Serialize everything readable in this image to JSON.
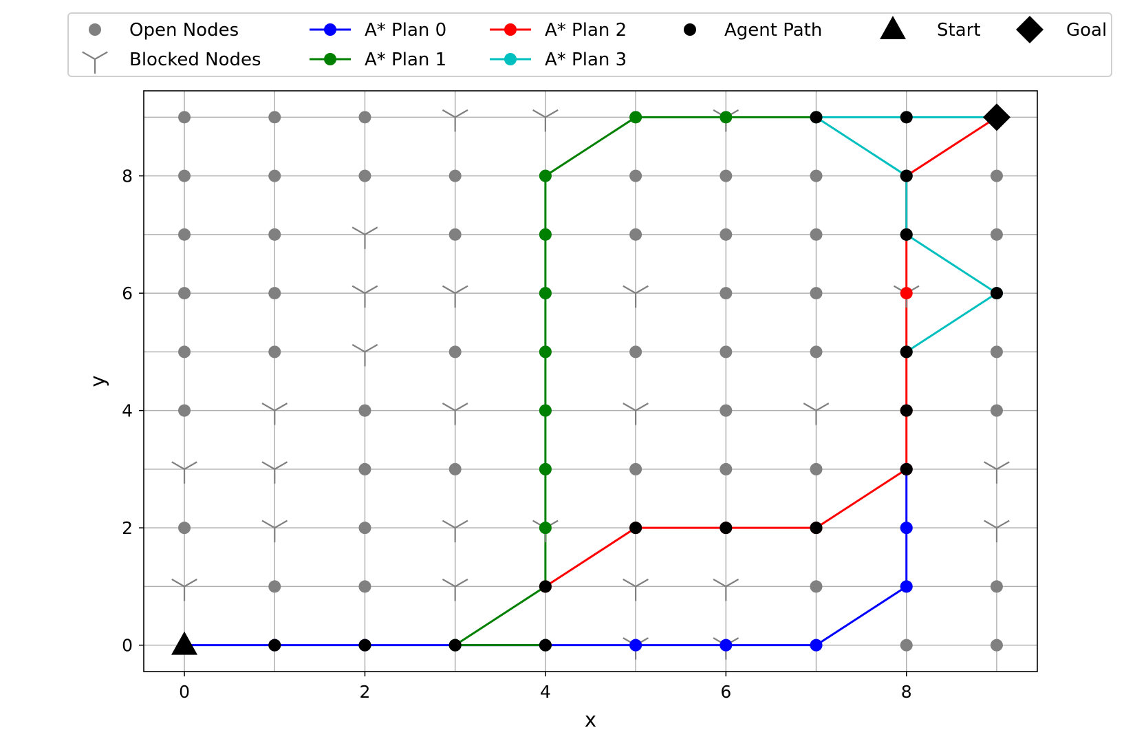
{
  "chart_data": {
    "type": "scatter",
    "xlabel": "x",
    "ylabel": "y",
    "xlim": [
      -0.45,
      9.45
    ],
    "ylim": [
      -0.45,
      9.45
    ],
    "xticks": [
      "0",
      "2",
      "4",
      "6",
      "8"
    ],
    "yticks": [
      "0",
      "2",
      "4",
      "6",
      "8"
    ],
    "grid": true,
    "legend_position": "top, above plot",
    "colors": {
      "open": "#808080",
      "blocked": "#808080",
      "plan0": "#0000ff",
      "plan1": "#008000",
      "plan2": "#ff0000",
      "plan3": "#00bfbf",
      "agent": "#000000",
      "grid": "#b0b0b0"
    },
    "open_nodes": [
      [
        0,
        9
      ],
      [
        1,
        9
      ],
      [
        2,
        9
      ],
      [
        5,
        9
      ],
      [
        6,
        9
      ],
      [
        7,
        9
      ],
      [
        8,
        9
      ],
      [
        0,
        8
      ],
      [
        1,
        8
      ],
      [
        2,
        8
      ],
      [
        3,
        8
      ],
      [
        4,
        8
      ],
      [
        5,
        8
      ],
      [
        6,
        8
      ],
      [
        7,
        8
      ],
      [
        8,
        8
      ],
      [
        9,
        8
      ],
      [
        0,
        7
      ],
      [
        1,
        7
      ],
      [
        3,
        7
      ],
      [
        4,
        7
      ],
      [
        5,
        7
      ],
      [
        6,
        7
      ],
      [
        7,
        7
      ],
      [
        8,
        7
      ],
      [
        9,
        7
      ],
      [
        0,
        6
      ],
      [
        1,
        6
      ],
      [
        4,
        6
      ],
      [
        6,
        6
      ],
      [
        7,
        6
      ],
      [
        9,
        6
      ],
      [
        0,
        5
      ],
      [
        1,
        5
      ],
      [
        3,
        5
      ],
      [
        4,
        5
      ],
      [
        5,
        5
      ],
      [
        6,
        5
      ],
      [
        7,
        5
      ],
      [
        8,
        5
      ],
      [
        9,
        5
      ],
      [
        0,
        4
      ],
      [
        2,
        4
      ],
      [
        4,
        4
      ],
      [
        6,
        4
      ],
      [
        8,
        4
      ],
      [
        9,
        4
      ],
      [
        2,
        3
      ],
      [
        3,
        3
      ],
      [
        4,
        3
      ],
      [
        5,
        3
      ],
      [
        6,
        3
      ],
      [
        7,
        3
      ],
      [
        8,
        3
      ],
      [
        0,
        2
      ],
      [
        2,
        2
      ],
      [
        5,
        2
      ],
      [
        6,
        2
      ],
      [
        7,
        2
      ],
      [
        8,
        2
      ],
      [
        1,
        1
      ],
      [
        2,
        1
      ],
      [
        4,
        1
      ],
      [
        7,
        1
      ],
      [
        8,
        1
      ],
      [
        9,
        1
      ],
      [
        0,
        0
      ],
      [
        1,
        0
      ],
      [
        2,
        0
      ],
      [
        3,
        0
      ],
      [
        4,
        0
      ],
      [
        5,
        0
      ],
      [
        6,
        0
      ],
      [
        7,
        0
      ],
      [
        8,
        0
      ],
      [
        9,
        0
      ]
    ],
    "blocked_nodes": [
      [
        3,
        9
      ],
      [
        4,
        9
      ],
      [
        6,
        9
      ],
      [
        2,
        7
      ],
      [
        2,
        6
      ],
      [
        3,
        6
      ],
      [
        5,
        6
      ],
      [
        8,
        6
      ],
      [
        2,
        5
      ],
      [
        1,
        4
      ],
      [
        3,
        4
      ],
      [
        5,
        4
      ],
      [
        7,
        4
      ],
      [
        0,
        3
      ],
      [
        1,
        3
      ],
      [
        9,
        3
      ],
      [
        1,
        2
      ],
      [
        3,
        2
      ],
      [
        4,
        2
      ],
      [
        9,
        2
      ],
      [
        0,
        1
      ],
      [
        3,
        1
      ],
      [
        5,
        1
      ],
      [
        6,
        1
      ],
      [
        5,
        0
      ],
      [
        6,
        0
      ]
    ],
    "series": [
      {
        "name": "A* Plan 0",
        "key": "plan0",
        "points": [
          [
            0,
            0
          ],
          [
            1,
            0
          ],
          [
            2,
            0
          ],
          [
            3,
            0
          ],
          [
            4,
            0
          ],
          [
            5,
            0
          ],
          [
            6,
            0
          ],
          [
            7,
            0
          ],
          [
            8,
            1
          ],
          [
            8,
            2
          ],
          [
            8,
            3
          ]
        ]
      },
      {
        "name": "A* Plan 1",
        "key": "plan1",
        "points": [
          [
            3,
            0
          ],
          [
            4,
            0
          ],
          [
            3,
            0
          ],
          [
            4,
            1
          ],
          [
            4,
            2
          ],
          [
            4,
            3
          ],
          [
            4,
            4
          ],
          [
            4,
            5
          ],
          [
            4,
            6
          ],
          [
            4,
            7
          ],
          [
            4,
            8
          ],
          [
            5,
            9
          ],
          [
            6,
            9
          ],
          [
            7,
            9
          ]
        ]
      },
      {
        "name": "A* Plan 2",
        "key": "plan2",
        "points": [
          [
            4,
            1
          ],
          [
            5,
            2
          ],
          [
            6,
            2
          ],
          [
            7,
            2
          ],
          [
            8,
            3
          ],
          [
            8,
            4
          ],
          [
            8,
            5
          ],
          [
            8,
            6
          ],
          [
            8,
            7
          ],
          [
            8,
            8
          ],
          [
            9,
            9
          ]
        ]
      },
      {
        "name": "A* Plan 3",
        "key": "plan3",
        "points": [
          [
            7,
            9
          ],
          [
            8,
            8
          ],
          [
            8,
            7
          ],
          [
            9,
            6
          ],
          [
            8,
            5
          ]
        ]
      },
      {
        "name": "A* Plan 3 (upper)",
        "key": "plan3",
        "unlabeled": true,
        "points": [
          [
            7,
            9
          ],
          [
            8,
            9
          ],
          [
            9,
            9
          ]
        ]
      }
    ],
    "agent_path": [
      [
        0,
        0
      ],
      [
        1,
        0
      ],
      [
        2,
        0
      ],
      [
        3,
        0
      ],
      [
        4,
        0
      ],
      [
        4,
        1
      ],
      [
        5,
        2
      ],
      [
        6,
        2
      ],
      [
        7,
        2
      ],
      [
        8,
        3
      ],
      [
        8,
        4
      ],
      [
        8,
        5
      ],
      [
        8,
        7
      ],
      [
        8,
        8
      ],
      [
        9,
        6
      ],
      [
        7,
        9
      ],
      [
        8,
        9
      ]
    ],
    "start": [
      0,
      0
    ],
    "goal": [
      9,
      9
    ],
    "legend": [
      {
        "label": "Open Nodes",
        "marker": "circle",
        "color": "#808080"
      },
      {
        "label": "Blocked Nodes",
        "marker": "tri",
        "color": "#808080"
      },
      {
        "label": "A* Plan 0",
        "marker": "line",
        "color": "#0000ff"
      },
      {
        "label": "A* Plan 1",
        "marker": "line",
        "color": "#008000"
      },
      {
        "label": "A* Plan 2",
        "marker": "line",
        "color": "#ff0000"
      },
      {
        "label": "A* Plan 3",
        "marker": "line",
        "color": "#00bfbf"
      },
      {
        "label": "Agent Path",
        "marker": "circle",
        "color": "#000000"
      },
      {
        "label": "Start",
        "marker": "triangle",
        "color": "#000000"
      },
      {
        "label": "Goal",
        "marker": "diamond",
        "color": "#000000"
      }
    ]
  }
}
